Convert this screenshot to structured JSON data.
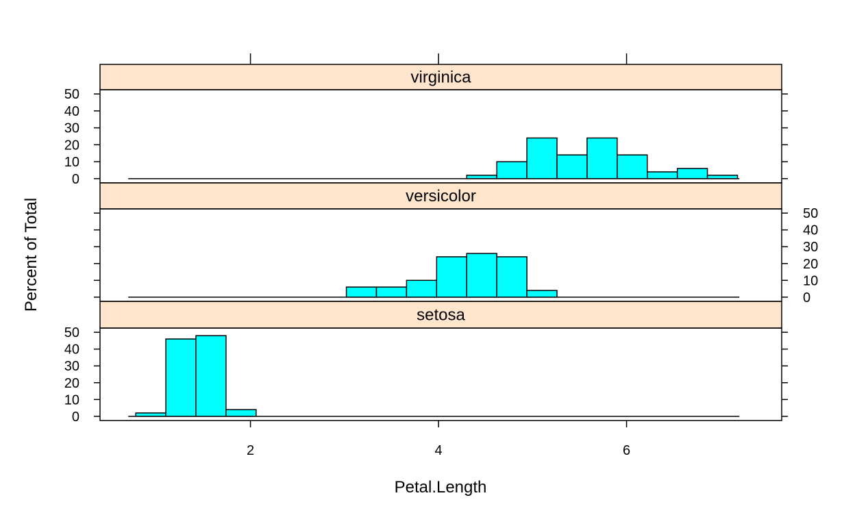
{
  "chart_data": {
    "type": "bar",
    "subtype": "lattice histogram",
    "xlabel": "Petal.Length",
    "ylabel": "Percent of Total",
    "xlim": [
      0.4,
      7.65
    ],
    "ylim": [
      -2.5,
      52.5
    ],
    "x_ticks": [
      2,
      4,
      6
    ],
    "y_ticks": [
      0,
      10,
      20,
      30,
      40,
      50
    ],
    "x_tick_labels": [
      "2",
      "4",
      "6"
    ],
    "y_tick_labels": [
      "0",
      "10",
      "20",
      "30",
      "40",
      "50"
    ],
    "baseline_range": [
      0.7,
      7.2
    ],
    "bin_edges": [
      0.78,
      1.1,
      1.42,
      1.74,
      2.06,
      2.38,
      2.7,
      3.02,
      3.34,
      3.66,
      3.98,
      4.3,
      4.62,
      4.94,
      5.26,
      5.58,
      5.9,
      6.22,
      6.54,
      6.86,
      7.18
    ],
    "panels": [
      {
        "strip": "setosa",
        "values": [
          2,
          46,
          48,
          4,
          0,
          0,
          0,
          0,
          0,
          0,
          0,
          0,
          0,
          0,
          0,
          0,
          0,
          0,
          0,
          0
        ]
      },
      {
        "strip": "versicolor",
        "values": [
          0,
          0,
          0,
          0,
          0,
          0,
          0,
          6,
          6,
          10,
          24,
          26,
          24,
          4,
          0,
          0,
          0,
          0,
          0,
          0
        ]
      },
      {
        "strip": "virginica",
        "values": [
          0,
          0,
          0,
          0,
          0,
          0,
          0,
          0,
          0,
          0,
          0,
          2,
          10,
          24,
          14,
          24,
          14,
          4,
          6,
          2
        ]
      }
    ],
    "colors": {
      "bar_fill": "#00FFFF",
      "bar_stroke": "#000000",
      "strip_fill": "#FFE5CC",
      "axis": "#000000"
    },
    "grid": false
  }
}
